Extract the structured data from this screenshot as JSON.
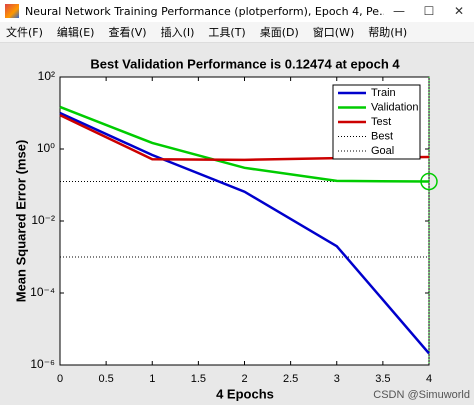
{
  "window": {
    "title": "Neural Network Training Performance (plotperform), Epoch 4, Pe...",
    "menu": [
      "文件(F)",
      "编辑(E)",
      "查看(V)",
      "插入(I)",
      "工具(T)",
      "桌面(D)",
      "窗口(W)",
      "帮助(H)"
    ],
    "watermark": "CSDN @Simuworld"
  },
  "chart_data": {
    "type": "line",
    "title": "Best Validation Performance is 0.12474 at epoch 4",
    "x_label": "4 Epochs",
    "y_label": "Mean Squared Error  (mse)",
    "x": [
      0,
      1,
      2,
      3,
      4
    ],
    "series": [
      {
        "name": "Train",
        "color": "#0000cc",
        "values": [
          10,
          0.68,
          0.065,
          0.002,
          2.1e-06
        ]
      },
      {
        "name": "Validation",
        "color": "#00cc00",
        "values": [
          14.7,
          1.47,
          0.3,
          0.13,
          0.12474
        ]
      },
      {
        "name": "Test",
        "color": "#cc0000",
        "values": [
          8.7,
          0.52,
          0.5,
          0.56,
          0.6
        ]
      }
    ],
    "best": {
      "name": "Best",
      "epoch": 4,
      "value": 0.12474,
      "color": "#00cc00"
    },
    "goal": {
      "name": "Goal",
      "value": 0.001
    },
    "xlim": [
      0,
      4
    ],
    "xticks": [
      0,
      0.5,
      1,
      1.5,
      2,
      2.5,
      3,
      3.5,
      4
    ],
    "ylim": [
      1e-06,
      100
    ],
    "y_scale": "log",
    "yticks": [
      {
        "value": 1e-06,
        "label": "10⁻⁶"
      },
      {
        "value": 0.0001,
        "label": "10⁻⁴"
      },
      {
        "value": 0.01,
        "label": "10⁻²"
      },
      {
        "value": 1,
        "label": "10⁰"
      },
      {
        "value": 100,
        "label": "10²"
      }
    ],
    "legend": "top-right"
  }
}
